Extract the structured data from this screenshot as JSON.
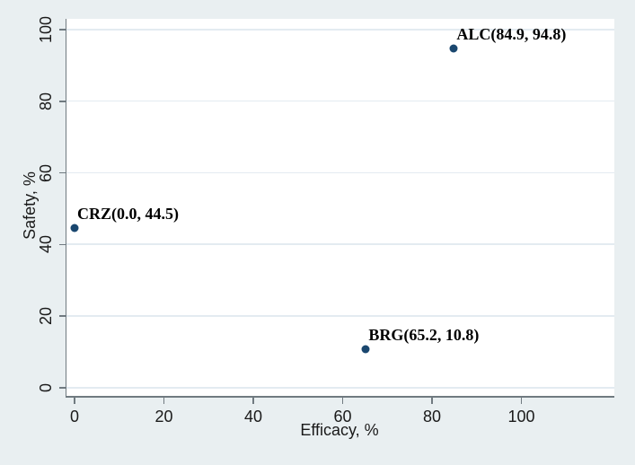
{
  "chart_data": {
    "type": "scatter",
    "title": "",
    "xlabel": "Efficacy, %",
    "ylabel": "Safety, %",
    "xlim": [
      -2,
      121
    ],
    "ylim": [
      -2.3,
      103
    ],
    "xticks": [
      0,
      20,
      40,
      60,
      80,
      100
    ],
    "yticks": [
      0,
      20,
      40,
      60,
      80,
      100
    ],
    "grid": "horizontal-only",
    "legend": "none",
    "points": [
      {
        "name": "ALC",
        "x": 84.9,
        "y": 94.8,
        "annotation": "ALC(84.9, 94.8)"
      },
      {
        "name": "CRZ",
        "x": 0.0,
        "y": 44.5,
        "annotation": "CRZ(0.0, 44.5)"
      },
      {
        "name": "BRG",
        "x": 65.2,
        "y": 10.8,
        "annotation": "BRG(65.2, 10.8)"
      }
    ],
    "colors": {
      "figure_background": "#e9eff1",
      "plot_background": "#ffffff",
      "gridline": "#e3ebf1",
      "axis": "#707a80",
      "marker": "#1a476f",
      "tick_text": "#1a1a1a",
      "annotation_text": "#000000"
    }
  }
}
